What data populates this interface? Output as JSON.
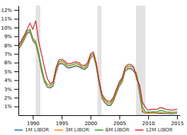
{
  "chart_data": {
    "type": "line",
    "x": [
      1987.5,
      1988.0,
      1988.5,
      1989.0,
      1989.5,
      1990.0,
      1990.5,
      1991.0,
      1991.5,
      1992.0,
      1992.5,
      1993.0,
      1993.5,
      1994.0,
      1994.5,
      1995.0,
      1995.5,
      1996.0,
      1996.5,
      1997.0,
      1997.5,
      1998.0,
      1998.5,
      1999.0,
      1999.5,
      2000.0,
      2000.5,
      2001.0,
      2001.5,
      2002.0,
      2002.5,
      2003.0,
      2003.5,
      2004.0,
      2004.5,
      2005.0,
      2005.5,
      2006.0,
      2006.5,
      2007.0,
      2007.5,
      2008.0,
      2008.5,
      2009.0,
      2009.5,
      2010.0,
      2010.5,
      2011.0,
      2011.5,
      2012.0,
      2012.5,
      2013.0,
      2013.5,
      2014.0,
      2014.5,
      2015.0
    ],
    "series": [
      {
        "name": "1M LIBOR",
        "values": [
          7.5,
          8.0,
          8.6,
          9.3,
          9.5,
          8.5,
          8.1,
          6.8,
          5.0,
          3.8,
          3.2,
          3.1,
          3.3,
          4.8,
          5.8,
          5.9,
          5.7,
          5.4,
          5.4,
          5.5,
          5.6,
          5.5,
          5.3,
          5.2,
          5.5,
          6.5,
          6.8,
          5.5,
          3.5,
          1.9,
          1.4,
          1.1,
          1.1,
          1.6,
          2.5,
          3.3,
          3.8,
          5.0,
          5.3,
          5.3,
          5.0,
          4.5,
          2.5,
          0.4,
          0.25,
          0.23,
          0.26,
          0.25,
          0.22,
          0.19,
          0.19,
          0.16,
          0.17,
          0.15,
          0.16,
          0.18
        ]
      },
      {
        "name": "3M LIBOR",
        "values": [
          7.6,
          8.1,
          8.7,
          9.4,
          9.6,
          8.6,
          8.2,
          6.9,
          5.2,
          3.9,
          3.3,
          3.2,
          3.4,
          5.0,
          5.9,
          6.0,
          5.8,
          5.5,
          5.5,
          5.6,
          5.7,
          5.6,
          5.4,
          5.3,
          5.6,
          6.6,
          6.8,
          5.6,
          3.6,
          2.0,
          1.5,
          1.2,
          1.2,
          1.7,
          2.6,
          3.4,
          3.9,
          5.1,
          5.4,
          5.4,
          5.2,
          4.8,
          2.8,
          0.5,
          0.25,
          0.25,
          0.28,
          0.28,
          0.25,
          0.31,
          0.3,
          0.27,
          0.26,
          0.23,
          0.24,
          0.26
        ]
      },
      {
        "name": "6M LIBOR",
        "values": [
          7.8,
          8.3,
          8.9,
          9.6,
          9.8,
          8.8,
          8.4,
          7.1,
          5.5,
          4.1,
          3.5,
          3.4,
          3.6,
          5.2,
          6.1,
          6.2,
          6.0,
          5.7,
          5.7,
          5.8,
          5.9,
          5.8,
          5.5,
          5.5,
          5.8,
          6.8,
          7.0,
          5.8,
          3.8,
          2.2,
          1.7,
          1.4,
          1.4,
          1.9,
          2.8,
          3.6,
          4.1,
          5.3,
          5.6,
          5.6,
          5.4,
          4.5,
          3.2,
          0.9,
          0.4,
          0.35,
          0.38,
          0.4,
          0.37,
          0.53,
          0.51,
          0.4,
          0.38,
          0.33,
          0.35,
          0.38
        ]
      },
      {
        "name": "12M LIBOR",
        "values": [
          8.0,
          8.5,
          9.1,
          9.8,
          10.5,
          9.8,
          10.8,
          8.5,
          7.0,
          5.5,
          4.2,
          3.6,
          3.8,
          5.4,
          6.3,
          6.4,
          6.2,
          5.9,
          5.9,
          6.0,
          6.1,
          6.0,
          5.7,
          5.7,
          6.0,
          7.0,
          7.2,
          6.0,
          4.0,
          2.4,
          1.9,
          1.6,
          1.6,
          2.1,
          3.0,
          3.8,
          4.3,
          5.5,
          5.8,
          5.8,
          5.5,
          4.1,
          3.5,
          1.5,
          0.9,
          0.55,
          0.65,
          0.7,
          0.65,
          0.85,
          0.83,
          0.68,
          0.66,
          0.57,
          0.62,
          0.7
        ]
      }
    ],
    "bands": {
      "color": "#e2e2e2",
      "ranges": [
        [
          1990.5,
          1991.3
        ],
        [
          2001.2,
          2001.9
        ],
        [
          2007.9,
          2009.5
        ]
      ]
    },
    "xlim": [
      1987.5,
      2015.5
    ],
    "xticks": [
      1990,
      1995,
      2000,
      2005,
      2010,
      2015
    ],
    "ylim": [
      0,
      12.5
    ],
    "yticks": [
      {
        "value": 1,
        "label": "1%"
      },
      {
        "value": 2,
        "label": "2%"
      },
      {
        "value": 3,
        "label": "3%"
      },
      {
        "value": 4,
        "label": "4%"
      },
      {
        "value": 5,
        "label": "5%"
      },
      {
        "value": 6,
        "label": "6%"
      },
      {
        "value": 7,
        "label": "7%"
      },
      {
        "value": 8,
        "label": "8%"
      },
      {
        "value": 9,
        "label": "9%"
      },
      {
        "value": 10,
        "label": "10%"
      },
      {
        "value": 11,
        "label": "11%"
      },
      {
        "value": 12,
        "label": "12%"
      }
    ],
    "grid": false,
    "legend": "bottom"
  }
}
